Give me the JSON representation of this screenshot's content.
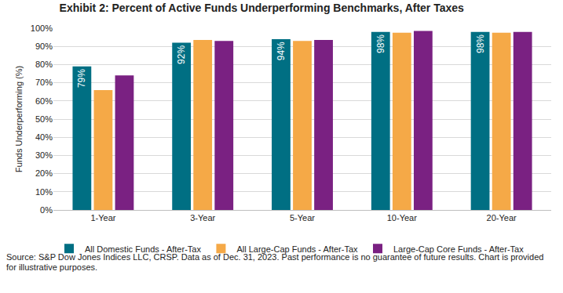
{
  "chart_data": {
    "type": "bar",
    "title": "Exhibit 2: Percent of Active Funds Underperforming Benchmarks, After Taxes",
    "y_label": "Funds Underperforming (%)",
    "categories": [
      "1-Year",
      "3-Year",
      "5-Year",
      "10-Year",
      "20-Year"
    ],
    "series": [
      {
        "name": "All Domestic Funds - After-Tax",
        "color": "#006f83",
        "values": [
          79,
          92,
          94,
          98,
          98
        ],
        "data_labels": true,
        "value_labels": [
          "79%",
          "92%",
          "94%",
          "98%",
          "98%"
        ]
      },
      {
        "name": "All Large-Cap Funds - After-Tax",
        "color": "#f5a947",
        "values": [
          66,
          93.5,
          93,
          97.5,
          97.5
        ]
      },
      {
        "name": "Large-Cap Core Funds - After-Tax",
        "color": "#7a2182",
        "values": [
          74,
          93,
          93.5,
          98.5,
          98
        ]
      }
    ],
    "ylim": [
      0,
      100
    ],
    "yticks": [
      {
        "value": 0,
        "label": "0%"
      },
      {
        "value": 10,
        "label": "10%"
      },
      {
        "value": 20,
        "label": "20%"
      },
      {
        "value": 30,
        "label": "30%"
      },
      {
        "value": 40,
        "label": "40%"
      },
      {
        "value": 50,
        "label": "50%"
      },
      {
        "value": 60,
        "label": "60%"
      },
      {
        "value": 70,
        "label": "70%"
      },
      {
        "value": 80,
        "label": "80%"
      },
      {
        "value": 90,
        "label": "90%"
      },
      {
        "value": 100,
        "label": "100%"
      }
    ],
    "grid": true,
    "legend": "bottom",
    "note": "Source: S&P Dow Jones Indices LLC, CRSP.  Data as of Dec. 31, 2023.  Past performance is no guarantee of future results.  Chart is provided for illustrative purposes."
  }
}
